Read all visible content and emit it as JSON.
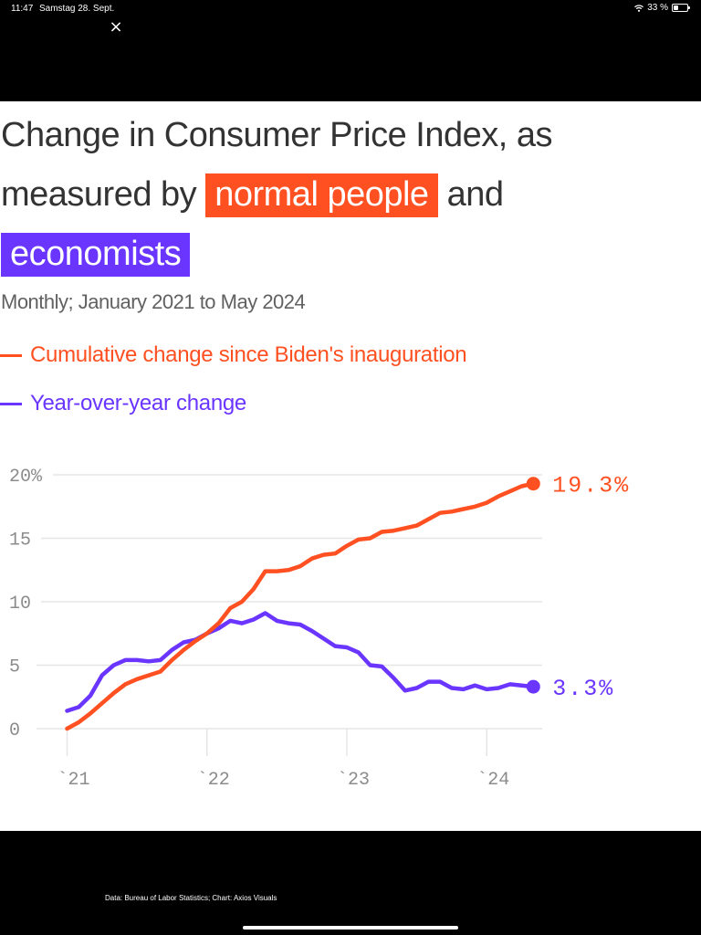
{
  "status_bar": {
    "time": "11:47",
    "date": "Samstag 28. Sept.",
    "battery": "33 %",
    "battery_level_percent": 33
  },
  "viewer": {
    "close_glyph": "×"
  },
  "title": {
    "part1": "Change in Consumer Price Index, as measured by",
    "highlight1": "normal people",
    "part2": "and",
    "highlight2": "economists"
  },
  "colors": {
    "orange": "#ff5021",
    "purple": "#6935ff",
    "grid": "#e6e6e6",
    "tick_text": "#8c8c8c"
  },
  "subtitle": "Monthly; January 2021 to May 2024",
  "footer": "Data: Bureau of Labor Statistics; Chart: Axios Visuals",
  "chart_data": {
    "type": "line",
    "title": "Change in Consumer Price Index, as measured by normal people and economists",
    "subtitle": "Monthly; January 2021 to May 2024",
    "xlabel": "",
    "ylabel": "",
    "ylim": [
      0,
      20
    ],
    "yticks": [
      0,
      5,
      10,
      15,
      20
    ],
    "ytick_labels": [
      "0",
      "5",
      "10",
      "15",
      "20%"
    ],
    "xticks_month_index": [
      0,
      12,
      24,
      36
    ],
    "xtick_labels": [
      "`21",
      "`22",
      "`23",
      "`24"
    ],
    "grid": true,
    "legend_position": "top-left",
    "x_start": "2021-01",
    "x_end": "2024-05",
    "series": [
      {
        "name": "Cumulative change since Biden's inauguration",
        "color": "#ff5021",
        "end_label": "19.3%",
        "values": [
          0.0,
          0.5,
          1.2,
          2.0,
          2.8,
          3.5,
          3.9,
          4.2,
          4.5,
          5.4,
          6.2,
          6.9,
          7.5,
          8.3,
          9.5,
          10.0,
          11.0,
          12.4,
          12.4,
          12.5,
          12.8,
          13.4,
          13.7,
          13.8,
          14.4,
          14.9,
          15.0,
          15.5,
          15.6,
          15.8,
          16.0,
          16.5,
          17.0,
          17.1,
          17.3,
          17.5,
          17.8,
          18.3,
          18.7,
          19.1,
          19.3
        ]
      },
      {
        "name": "Year-over-year change",
        "color": "#6935ff",
        "end_label": "3.3%",
        "values": [
          1.4,
          1.7,
          2.6,
          4.2,
          5.0,
          5.4,
          5.4,
          5.3,
          5.4,
          6.2,
          6.8,
          7.0,
          7.5,
          7.9,
          8.5,
          8.3,
          8.6,
          9.1,
          8.5,
          8.3,
          8.2,
          7.7,
          7.1,
          6.5,
          6.4,
          6.0,
          5.0,
          4.9,
          4.0,
          3.0,
          3.2,
          3.7,
          3.7,
          3.2,
          3.1,
          3.4,
          3.1,
          3.2,
          3.5,
          3.4,
          3.3
        ]
      }
    ]
  }
}
